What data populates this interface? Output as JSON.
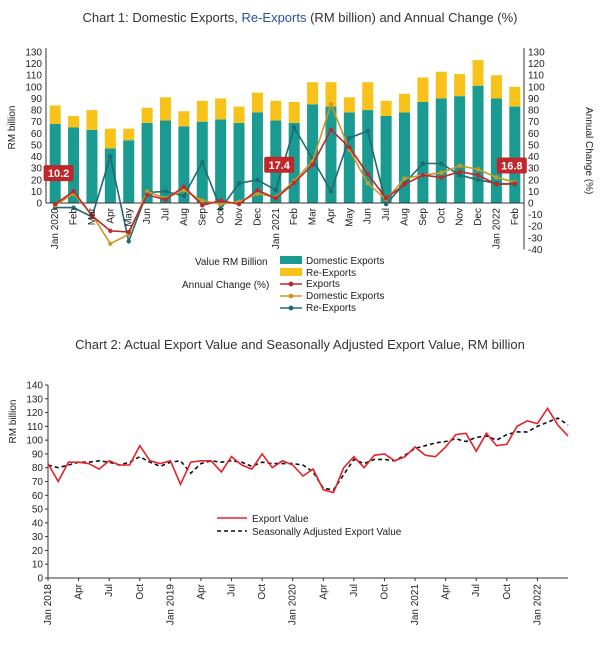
{
  "chart1": {
    "title_main": "Chart 1: Domestic Exports, ",
    "title_highlight": "Re-Exports",
    "title_rest": " (RM billion) and Annual Change (%)",
    "colors": {
      "domestic_bar": "#1a9b91",
      "reexport_bar": "#f7c31a",
      "exports_line": "#c0272d",
      "domestic_line": "#c99a24",
      "reexports_line": "#1e6b73",
      "callout": "#c0272d"
    },
    "legend": {
      "value_heading": "Value RM  Billion",
      "change_heading": "Annual Change (%)",
      "domestic_exports": "Domestic Exports",
      "re_exports": "Re-Exports",
      "exports": "Exports",
      "domestic_exports_line": "Domestic Exports",
      "re_exports_line": "Re-Exports"
    },
    "callouts": [
      "10.2",
      "17.4",
      "16.8"
    ]
  },
  "chart2": {
    "title": "Chart 2: Actual Export Value and Seasonally Adjusted Export Value, RM billion",
    "colors": {
      "actual": "#e8202a",
      "sa": "#111111"
    },
    "legend": {
      "actual": "Export Value",
      "sa": "Seasonally Adjusted Export Value"
    }
  },
  "chart_data": [
    {
      "type": "bar",
      "stacked": true,
      "categories": [
        "Jan 2020",
        "Feb",
        "Mar",
        "Apr",
        "May",
        "Jun",
        "Jul",
        "Aug",
        "Sep",
        "Oct",
        "Nov",
        "Dec",
        "Jan 2021",
        "Feb",
        "Mar",
        "Apr",
        "May",
        "Jun",
        "Jul",
        "Aug",
        "Sep",
        "Oct",
        "Nov",
        "Dec",
        "Jan 2022",
        "Feb"
      ],
      "ylabel": "RM billion",
      "y2label": "Annual Change (%)",
      "ylim": [
        0,
        130
      ],
      "y2lim": [
        -40,
        130
      ],
      "yticks": [
        0,
        10,
        20,
        30,
        40,
        50,
        60,
        70,
        80,
        90,
        100,
        110,
        120,
        130
      ],
      "y2ticks": [
        -40,
        -30,
        -20,
        -10,
        0,
        10,
        20,
        30,
        40,
        50,
        60,
        70,
        80,
        90,
        100,
        110,
        120,
        130
      ],
      "series": [
        {
          "name": "Domestic Exports",
          "axis": "left",
          "kind": "bar",
          "values": [
            68,
            65,
            63,
            47,
            54,
            69,
            71,
            66,
            70,
            72,
            69,
            78,
            71,
            69,
            85,
            83,
            78,
            80,
            75,
            78,
            87,
            90,
            92,
            101,
            90,
            83
          ]
        },
        {
          "name": "Re-Exports",
          "axis": "left",
          "kind": "bar",
          "values": [
            16,
            10,
            17,
            17,
            10,
            13,
            20,
            13,
            18,
            18,
            14,
            17,
            17,
            18,
            19,
            21,
            13,
            24,
            13,
            16,
            21,
            23,
            19,
            22,
            20,
            17
          ]
        },
        {
          "name": "Exports",
          "axis": "right",
          "kind": "line",
          "values": [
            -1,
            10.2,
            -11,
            -24,
            -25,
            7,
            3,
            14,
            -2,
            2,
            -1,
            11,
            4,
            17.4,
            33,
            63,
            48,
            25,
            4,
            16,
            24,
            22,
            27,
            24,
            16,
            16.8
          ]
        },
        {
          "name": "Domestic Exports",
          "axis": "right",
          "kind": "line",
          "values": [
            -2,
            8,
            -10,
            -35,
            -27,
            10,
            4,
            11,
            2,
            -1,
            1,
            8,
            5,
            19,
            36,
            85,
            46,
            17,
            3,
            21,
            24,
            26,
            32,
            29,
            22,
            18
          ]
        },
        {
          "name": "Re-Exports",
          "axis": "right",
          "kind": "line",
          "values": [
            -4,
            -4,
            -12,
            40,
            -33,
            9,
            10,
            6,
            35,
            -5,
            17,
            20,
            11,
            65,
            38,
            10,
            56,
            62,
            -1,
            17,
            34,
            34,
            24,
            20,
            17,
            16
          ]
        }
      ],
      "annotations": [
        {
          "category": "Feb",
          "value": 10.2
        },
        {
          "category": "Feb",
          "value": 17.4
        },
        {
          "category": "Feb",
          "value": 16.8
        }
      ]
    },
    {
      "type": "line",
      "x_start": "2018-01",
      "x_end": "2022-03",
      "x_tick_labels": [
        "Jan 2018",
        "Apr",
        "Jul",
        "Oct",
        "Jan 2019",
        "Apr",
        "Jul",
        "Oct",
        "Jan 2020",
        "Apr",
        "Jul",
        "Oct",
        "Jan 2021",
        "Apr",
        "Jul",
        "Oct",
        "Jan 2022"
      ],
      "ylabel": "RM billion",
      "ylim": [
        0,
        140
      ],
      "yticks": [
        0,
        10,
        20,
        30,
        40,
        50,
        60,
        70,
        80,
        90,
        100,
        110,
        120,
        130,
        140
      ],
      "series": [
        {
          "name": "Export Value",
          "values": [
            83,
            70,
            84,
            84,
            83,
            79,
            85,
            82,
            82,
            96,
            85,
            83,
            85,
            68,
            84,
            85,
            85,
            77,
            88,
            82,
            79,
            90,
            80,
            85,
            82,
            74,
            79,
            64,
            62,
            80,
            88,
            80,
            89,
            90,
            85,
            88,
            95,
            89,
            88,
            95,
            104,
            105,
            92,
            105,
            96,
            97,
            110,
            114,
            112,
            123,
            111,
            103
          ]
        },
        {
          "name": "Seasonally Adjusted Export Value",
          "values": [
            82,
            80,
            82,
            84,
            84,
            85,
            84,
            82,
            84,
            88,
            84,
            81,
            84,
            85,
            76,
            83,
            85,
            84,
            85,
            84,
            81,
            84,
            83,
            83,
            83,
            82,
            77,
            65,
            64,
            75,
            86,
            83,
            86,
            86,
            85,
            89,
            94,
            96,
            98,
            99,
            101,
            99,
            102,
            103,
            100,
            104,
            106,
            106,
            110,
            113,
            116,
            111
          ]
        }
      ]
    }
  ]
}
